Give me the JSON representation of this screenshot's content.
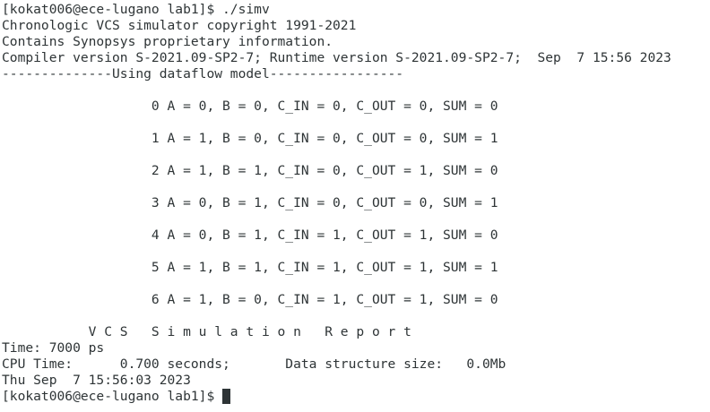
{
  "terminal": {
    "colors": {
      "background": "#ffffff",
      "foreground": "#2e3436",
      "cursor": "#2e3436"
    },
    "lines": [
      "[kokat006@ece-lugano lab1]$ ./simv",
      "Chronologic VCS simulator copyright 1991-2021",
      "Contains Synopsys proprietary information.",
      "Compiler version S-2021.09-SP2-7; Runtime version S-2021.09-SP2-7;  Sep  7 15:56 2023",
      "--------------Using dataflow model-----------------",
      "",
      "                   0 A = 0, B = 0, C_IN = 0, C_OUT = 0, SUM = 0",
      "",
      "                   1 A = 1, B = 0, C_IN = 0, C_OUT = 0, SUM = 1",
      "",
      "                   2 A = 1, B = 1, C_IN = 0, C_OUT = 1, SUM = 0",
      "",
      "                   3 A = 0, B = 1, C_IN = 0, C_OUT = 0, SUM = 1",
      "",
      "                   4 A = 0, B = 1, C_IN = 1, C_OUT = 1, SUM = 0",
      "",
      "                   5 A = 1, B = 1, C_IN = 1, C_OUT = 1, SUM = 1",
      "",
      "                   6 A = 1, B = 0, C_IN = 1, C_OUT = 1, SUM = 0",
      "",
      "           V C S   S i m u l a t i o n   R e p o r t",
      "Time: 7000 ps",
      "CPU Time:      0.700 seconds;       Data structure size:   0.0Mb",
      "Thu Sep  7 15:56:03 2023"
    ],
    "prompt": "[kokat006@ece-lugano lab1]$ "
  }
}
